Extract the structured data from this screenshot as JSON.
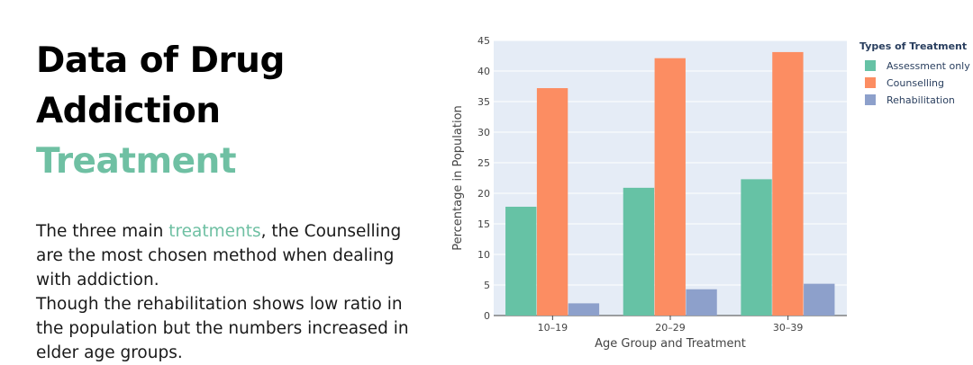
{
  "heading": {
    "line1": "Data of Drug",
    "line2_plain": "Addiction ",
    "line2_accent": "Treatment"
  },
  "description": {
    "part1": "The three main ",
    "accent_word": "treatments",
    "part2": ", the Counselling are the most chosen method when dealing with addiction.",
    "paragraph2": "Though the rehabilitation shows low ratio in the population but the numbers increased in elder age groups."
  },
  "colors": {
    "accent": "#6fc0a3",
    "plot_bg": "#e5ecf6",
    "grid": "#ffffff",
    "text_dark": "#2a3f5f"
  },
  "chart_data": {
    "type": "bar",
    "categories": [
      "10–19",
      "20–29",
      "30–39"
    ],
    "series": [
      {
        "name": "Assessment only",
        "values": [
          17.8,
          20.9,
          22.3
        ],
        "color": "#66c2a5"
      },
      {
        "name": "Counselling",
        "values": [
          37.2,
          42.1,
          43.1
        ],
        "color": "#fc8d62"
      },
      {
        "name": "Rehabilitation",
        "values": [
          2.0,
          4.3,
          5.2
        ],
        "color": "#8da0cb"
      }
    ],
    "ylim": [
      0,
      45
    ],
    "yticks": [
      0,
      5,
      10,
      15,
      20,
      25,
      30,
      35,
      40,
      45
    ],
    "xlabel": "Age Group and Treatment",
    "ylabel": "Percentage in Population",
    "legend_title": "Types of Treatment",
    "legend_position": "top-right",
    "grid": true
  }
}
